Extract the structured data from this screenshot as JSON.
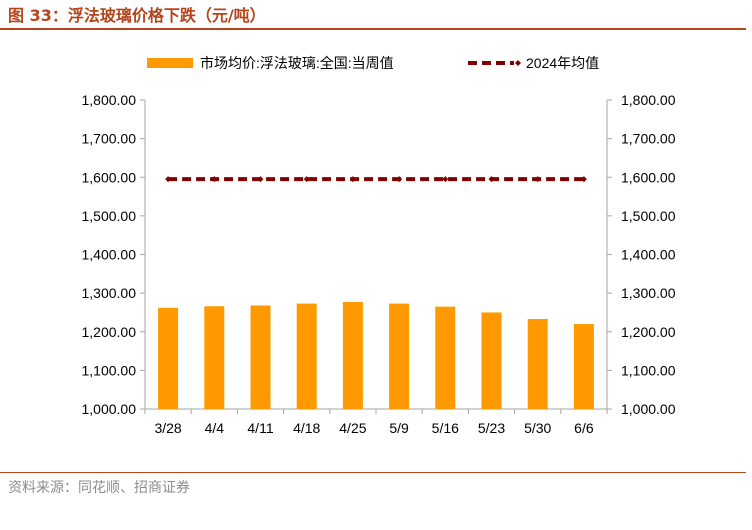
{
  "header": {
    "title": "图 33：浮法玻璃价格下跌（元/吨）"
  },
  "footer": {
    "source": "资料来源：同花顺、招商证券"
  },
  "colors": {
    "bar": "#ff9900",
    "line": "#800000",
    "accent": "#b5451b",
    "axis": "#a6a6a6"
  },
  "chart_data": {
    "type": "bar",
    "title": "",
    "xlabel": "",
    "ylabel": "",
    "categories": [
      "3/28",
      "4/4",
      "4/11",
      "4/18",
      "4/25",
      "5/9",
      "5/16",
      "5/23",
      "5/30",
      "6/6"
    ],
    "series": [
      {
        "name": "市场均价:浮法玻璃:全国:当周值",
        "type": "bar",
        "values": [
          1262,
          1266,
          1268,
          1273,
          1277,
          1273,
          1265,
          1250,
          1233,
          1220
        ]
      },
      {
        "name": "2024年均值",
        "type": "line-dashed",
        "values": [
          1595,
          1595,
          1595,
          1595,
          1595,
          1595,
          1595,
          1595,
          1595,
          1595
        ]
      }
    ],
    "ylim": [
      1000,
      1800
    ],
    "yticks": [
      "1,000.00",
      "1,100.00",
      "1,200.00",
      "1,300.00",
      "1,400.00",
      "1,500.00",
      "1,600.00",
      "1,700.00",
      "1,800.00"
    ],
    "y2ticks": [
      "1,000.00",
      "1,100.00",
      "1,200.00",
      "1,300.00",
      "1,400.00",
      "1,500.00",
      "1,600.00",
      "1,700.00",
      "1,800.00"
    ],
    "grid": false,
    "legend": "top"
  }
}
